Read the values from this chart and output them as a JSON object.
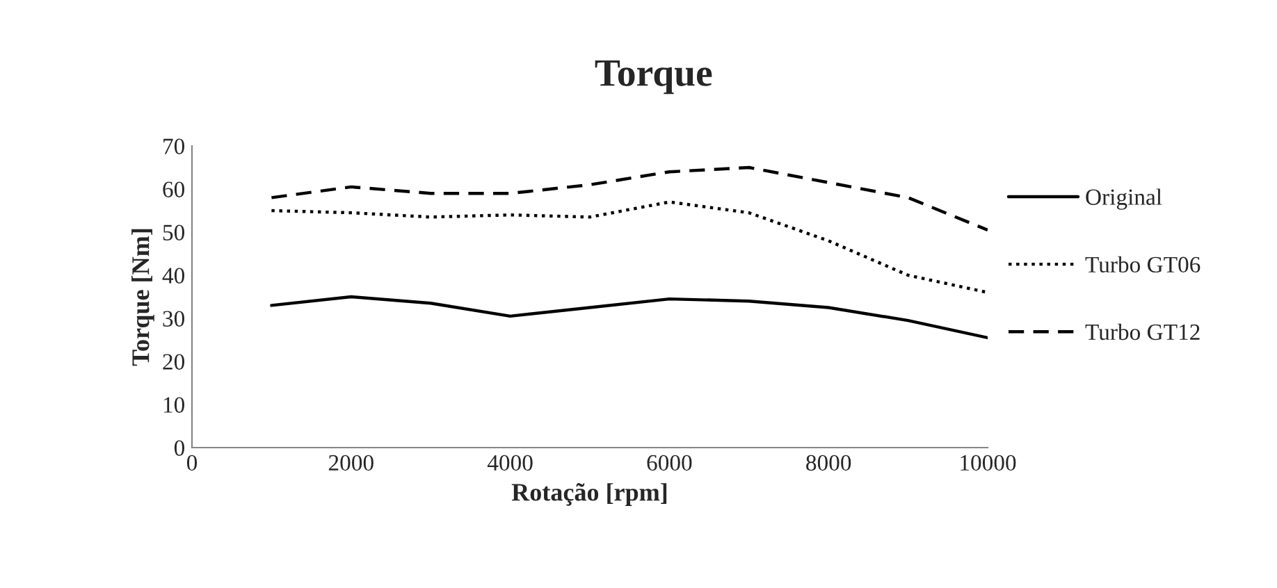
{
  "chart_data": {
    "type": "line",
    "title": "Torque",
    "xlabel": "Rotação [rpm]",
    "ylabel": "Torque [Nm]",
    "x": [
      1000,
      2000,
      3000,
      4000,
      5000,
      6000,
      7000,
      8000,
      9000,
      10000
    ],
    "series": [
      {
        "name": "Original",
        "color": "#000000",
        "line_style": "solid",
        "values": [
          33,
          35,
          33.5,
          30.5,
          32.5,
          34.5,
          34,
          32.5,
          29.5,
          25.5
        ]
      },
      {
        "name": "Turbo GT06",
        "color": "#000000",
        "line_style": "dotted",
        "values": [
          55,
          54.5,
          53.5,
          54,
          53.5,
          57,
          54.5,
          48,
          40,
          36
        ]
      },
      {
        "name": "Turbo GT12",
        "color": "#000000",
        "line_style": "dashed",
        "values": [
          58,
          60.5,
          59,
          59,
          61,
          64,
          65,
          61.5,
          58,
          50.5
        ]
      }
    ],
    "xlim": [
      0,
      10000
    ],
    "xticks": [
      0,
      2000,
      4000,
      6000,
      8000,
      10000
    ],
    "ylim": [
      0,
      70
    ],
    "yticks": [
      0,
      10,
      20,
      30,
      40,
      50,
      60,
      70
    ],
    "grid": false,
    "legend": "right",
    "marker": "none"
  }
}
